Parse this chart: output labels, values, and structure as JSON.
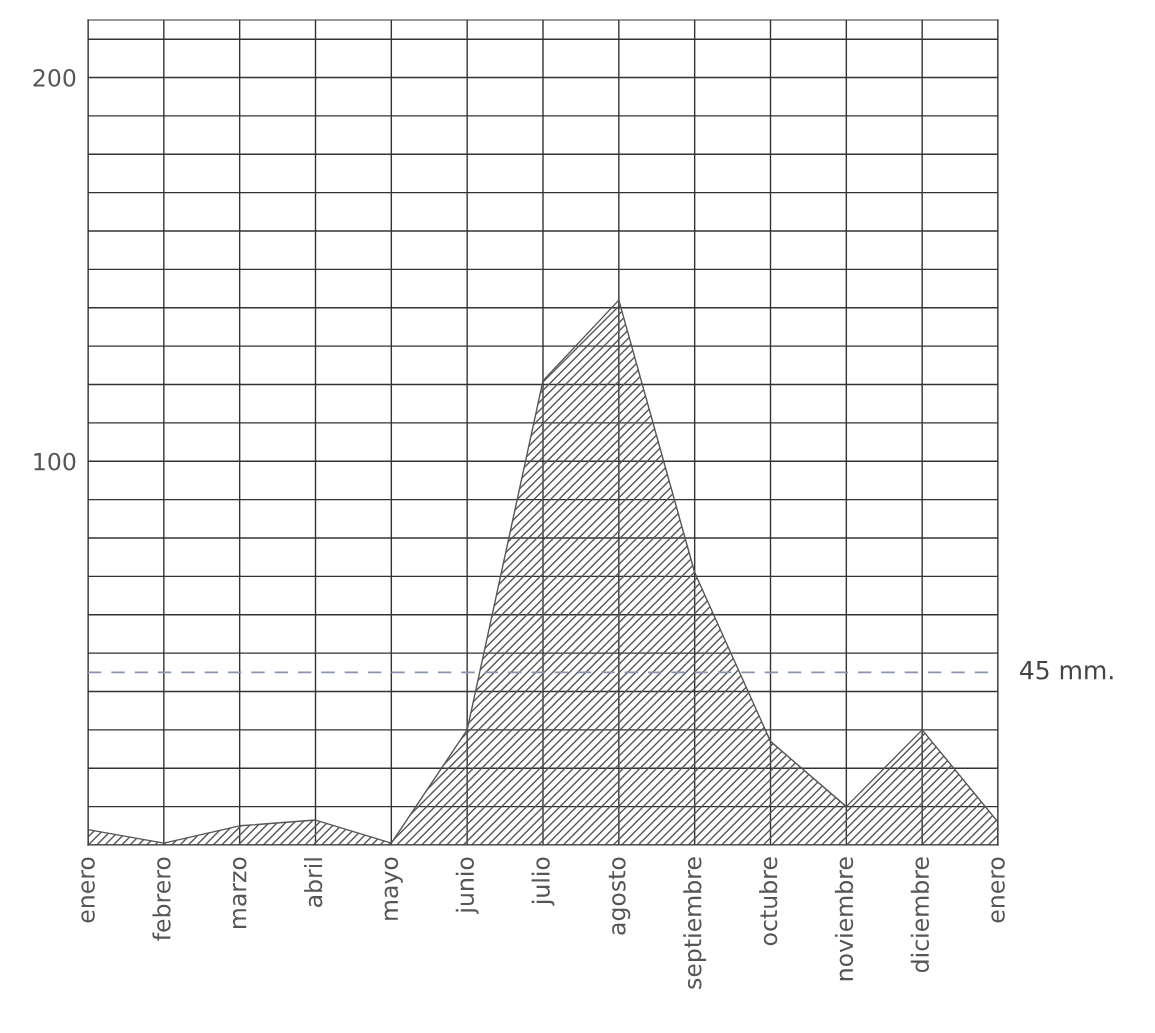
{
  "chart_data": {
    "type": "area",
    "categories": [
      "enero",
      "febrero",
      "marzo",
      "abril",
      "mayo",
      "junio",
      "julio",
      "agosto",
      "septiembre",
      "octubre",
      "noviembre",
      "diciembre",
      "enero"
    ],
    "series": [
      {
        "color": "#555555",
        "values": [
          4,
          0.5,
          5,
          6.5,
          0.5,
          30,
          121,
          142,
          71,
          27,
          10,
          30,
          6
        ]
      }
    ],
    "ylim": [
      0,
      215
    ],
    "yticks": [
      {
        "value": 10,
        "label": null
      },
      {
        "value": 20,
        "label": null
      },
      {
        "value": 30,
        "label": null
      },
      {
        "value": 40,
        "label": null
      },
      {
        "value": 50,
        "label": null
      },
      {
        "value": 60,
        "label": null
      },
      {
        "value": 70,
        "label": null
      },
      {
        "value": 80,
        "label": null
      },
      {
        "value": 90,
        "label": null
      },
      100,
      {
        "value": 110,
        "label": null
      },
      {
        "value": 120,
        "label": null
      },
      {
        "value": 130,
        "label": null
      },
      {
        "value": 140,
        "label": null
      },
      {
        "value": 150,
        "label": null
      },
      {
        "value": 160,
        "label": null
      },
      {
        "value": 170,
        "label": null
      },
      {
        "value": 180,
        "label": null
      },
      {
        "value": 190,
        "label": null
      },
      200,
      {
        "value": 210,
        "label": null
      }
    ],
    "ref_lines": [
      {
        "axis": "y",
        "value": 45,
        "label": "45 mm.",
        "color": "#8a93b0",
        "line_style": "dashed"
      }
    ],
    "grid": true
  }
}
